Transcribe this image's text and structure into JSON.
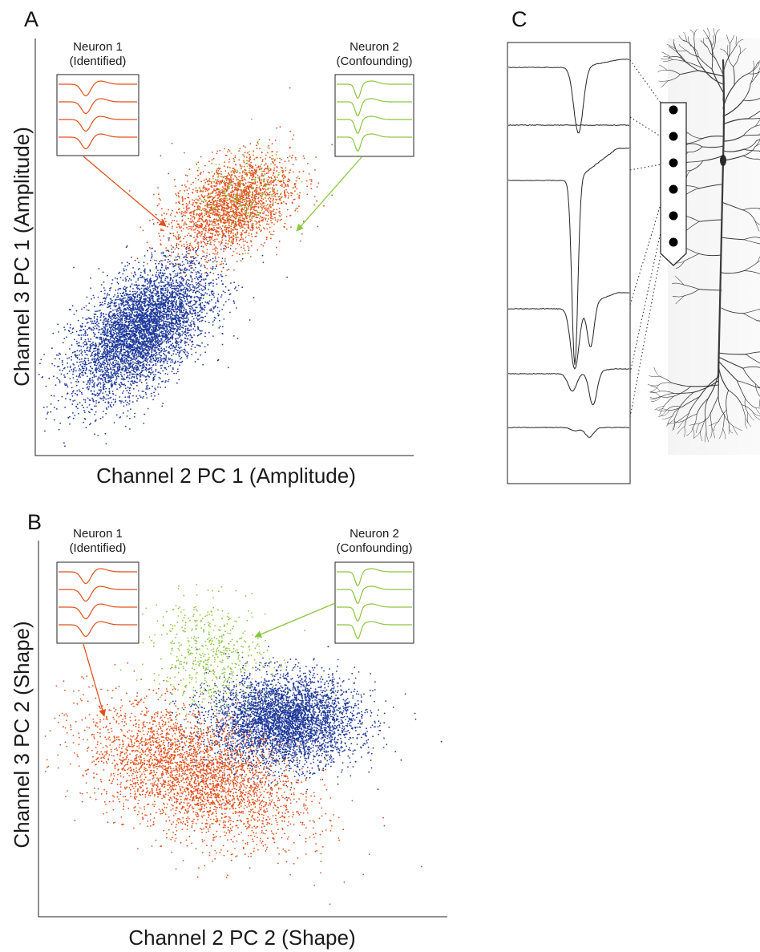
{
  "panels": {
    "A": {
      "label": "A"
    },
    "B": {
      "label": "B"
    },
    "C": {
      "label": "C"
    }
  },
  "chart_data": [
    {
      "panel": "A",
      "type": "scatter",
      "xlabel": "Channel 2 PC 1 (Amplitude)",
      "ylabel": "Channel 3 PC 1 (Amplitude)",
      "xlim": [
        0,
        100
      ],
      "ylim": [
        0,
        100
      ],
      "grid": false,
      "insets": [
        {
          "title_line1": "Neuron 1",
          "title_line2": "(Identified)",
          "color": "#e0501c"
        },
        {
          "title_line1": "Neuron 2",
          "title_line2": "(Confounding)",
          "color": "#8cc63f"
        }
      ],
      "series": [
        {
          "color": "#1f3a9a",
          "count": 5200,
          "center": [
            28,
            30
          ],
          "spread": [
            9,
            8
          ],
          "correlation": 0.55
        },
        {
          "color": "#e0501c",
          "count": 2300,
          "center": [
            52,
            60
          ],
          "spread": [
            8,
            6
          ],
          "correlation": 0.4
        },
        {
          "color": "#8cc63f",
          "count": 220,
          "center": [
            55,
            63
          ],
          "spread": [
            6,
            5
          ],
          "correlation": 0.3
        }
      ]
    },
    {
      "panel": "B",
      "type": "scatter",
      "xlabel": "Channel 2 PC 2 (Shape)",
      "ylabel": "Channel 3 PC 2 (Shape)",
      "xlim": [
        0,
        100
      ],
      "ylim": [
        0,
        100
      ],
      "grid": false,
      "insets": [
        {
          "title_line1": "Neuron 1",
          "title_line2": "(Identified)",
          "color": "#e0501c"
        },
        {
          "title_line1": "Neuron 2",
          "title_line2": "(Confounding)",
          "color": "#8cc63f"
        }
      ],
      "series": [
        {
          "color": "#1f3a9a",
          "count": 4300,
          "center": [
            60,
            52
          ],
          "spread": [
            9,
            6
          ],
          "correlation": 0.0
        },
        {
          "color": "#e0501c",
          "count": 3400,
          "center": [
            38,
            38
          ],
          "spread": [
            13,
            9
          ],
          "correlation": -0.45
        },
        {
          "color": "#8cc63f",
          "count": 550,
          "center": [
            42,
            70
          ],
          "spread": [
            7,
            7
          ],
          "correlation": -0.1
        }
      ]
    }
  ],
  "panel_c": {
    "traces": 6,
    "electrode_sites": 6
  },
  "colors": {
    "neuron1": "#e0501c",
    "neuron2": "#8cc63f",
    "other": "#1f3a9a"
  }
}
